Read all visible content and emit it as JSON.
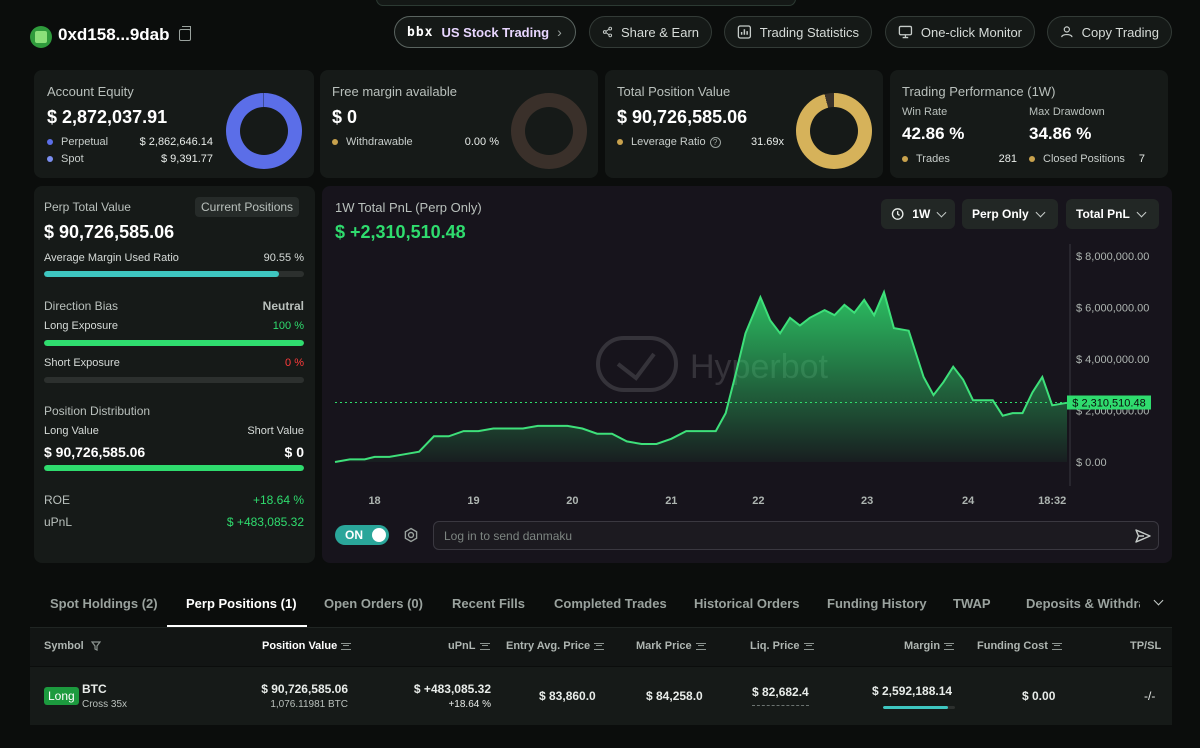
{
  "header": {
    "address": "0xd158...9dab",
    "buttons": {
      "stock_logo": "bbx",
      "stock": "US Stock Trading",
      "share": "Share & Earn",
      "stats": "Trading Statistics",
      "monitor": "One-click Monitor",
      "copy": "Copy Trading"
    }
  },
  "cards": {
    "equity": {
      "title": "Account Equity",
      "value": "$ 2,872,037.91",
      "rows": [
        {
          "label": "Perpetual",
          "value": "$ 2,862,646.14",
          "color": "#5b6ee8"
        },
        {
          "label": "Spot",
          "value": "$ 9,391.77",
          "color": "#7b8ef0"
        }
      ],
      "donut_fill_percent": 99.7,
      "donut_color": "#5b6ee8"
    },
    "free_margin": {
      "title": "Free margin available",
      "value": "$ 0",
      "row": {
        "label": "Withdrawable",
        "value": "0.00 %",
        "color": "#c8a24d"
      },
      "donut_fill_percent": 0,
      "donut_color": "#3a302a"
    },
    "position_value": {
      "title": "Total Position Value",
      "value": "$ 90,726,585.06",
      "row": {
        "label": "Leverage Ratio",
        "value": "31.69x",
        "color": "#c8a24d"
      },
      "donut_fill_percent": 96,
      "donut_color": "#d6b25a"
    },
    "performance": {
      "title": "Trading Performance (1W)",
      "win_rate_label": "Win Rate",
      "win_rate": "42.86 %",
      "drawdown_label": "Max Drawdown",
      "drawdown": "34.86 %",
      "trades_label": "Trades",
      "trades": "281",
      "closed_label": "Closed Positions",
      "closed": "7"
    }
  },
  "left_panel": {
    "perp_title": "Perp Total Value",
    "current_positions_btn": "Current Positions",
    "perp_value": "$ 90,726,585.06",
    "margin_label": "Average Margin Used Ratio",
    "margin_value": "90.55 %",
    "margin_fill": 90.55,
    "direction_label": "Direction Bias",
    "direction_value": "Neutral",
    "long_exp_label": "Long Exposure",
    "long_exp_value": "100 %",
    "long_exp_fill": 100,
    "short_exp_label": "Short Exposure",
    "short_exp_value": "0 %",
    "short_exp_fill": 0,
    "dist_label": "Position Distribution",
    "long_value_label": "Long Value",
    "short_value_label": "Short Value",
    "long_value": "$ 90,726,585.06",
    "short_value": "$ 0",
    "dist_fill": 100,
    "roe_label": "ROE",
    "roe_value": "+18.64 %",
    "upnl_label": "uPnL",
    "upnl_value": "$ +483,085.32"
  },
  "chart_panel": {
    "title": "1W Total PnL (Perp Only)",
    "value": "$ +2,310,510.48",
    "period": "1W",
    "scope": "Perp Only",
    "metric": "Total PnL",
    "watermark": "Hyperbot",
    "toggle": "ON",
    "danmaku_placeholder": "Log in to send danmaku",
    "current_label": "$ 2,310,510.48"
  },
  "chart_data": {
    "type": "area",
    "title": "1W Total PnL (Perp Only)",
    "x_ticks": [
      "18",
      "19",
      "20",
      "21",
      "22",
      "23",
      "24",
      "18:32"
    ],
    "y_ticks": [
      "$ 0.00",
      "$ 2,000,000.00",
      "$ 4,000,000.00",
      "$ 6,000,000.00",
      "$ 8,000,000.00"
    ],
    "ylim": [
      0,
      8000000
    ],
    "current_value": 2310510.48,
    "series": [
      {
        "values": [
          [
            17.6,
            0.0
          ],
          [
            17.75,
            0.1
          ],
          [
            17.9,
            0.1
          ],
          [
            18.0,
            0.2
          ],
          [
            18.15,
            0.2
          ],
          [
            18.3,
            0.3
          ],
          [
            18.45,
            0.4
          ],
          [
            18.6,
            1.0
          ],
          [
            18.75,
            1.0
          ],
          [
            18.9,
            1.2
          ],
          [
            19.05,
            1.2
          ],
          [
            19.2,
            1.3
          ],
          [
            19.35,
            1.3
          ],
          [
            19.5,
            1.3
          ],
          [
            19.65,
            1.4
          ],
          [
            19.8,
            1.4
          ],
          [
            19.95,
            1.4
          ],
          [
            20.1,
            1.3
          ],
          [
            20.25,
            1.1
          ],
          [
            20.4,
            1.1
          ],
          [
            20.55,
            0.8
          ],
          [
            20.7,
            0.7
          ],
          [
            20.85,
            0.7
          ],
          [
            21.0,
            0.9
          ],
          [
            21.15,
            1.2
          ],
          [
            21.3,
            1.2
          ],
          [
            21.45,
            1.2
          ],
          [
            21.55,
            1.9
          ],
          [
            21.65,
            3.4
          ],
          [
            21.75,
            5.0
          ],
          [
            21.9,
            6.4
          ],
          [
            22.0,
            5.5
          ],
          [
            22.1,
            5.0
          ],
          [
            22.2,
            5.6
          ],
          [
            22.3,
            5.3
          ],
          [
            22.4,
            5.6
          ],
          [
            22.55,
            5.9
          ],
          [
            22.65,
            5.7
          ],
          [
            22.75,
            6.1
          ],
          [
            22.85,
            5.8
          ],
          [
            22.95,
            6.3
          ],
          [
            23.05,
            5.7
          ],
          [
            23.15,
            6.6
          ],
          [
            23.25,
            5.2
          ],
          [
            23.4,
            5.1
          ],
          [
            23.55,
            3.3
          ],
          [
            23.65,
            2.6
          ],
          [
            23.75,
            3.1
          ],
          [
            23.85,
            3.7
          ],
          [
            23.95,
            3.2
          ],
          [
            24.05,
            2.4
          ],
          [
            24.25,
            2.4
          ],
          [
            24.35,
            1.8
          ],
          [
            24.45,
            1.9
          ],
          [
            24.55,
            1.9
          ],
          [
            24.65,
            2.7
          ],
          [
            24.75,
            3.3
          ],
          [
            24.85,
            2.2
          ],
          [
            25.0,
            2.3
          ]
        ]
      }
    ]
  },
  "tabs": [
    "Spot Holdings (2)",
    "Perp Positions (1)",
    "Open Orders (0)",
    "Recent Fills",
    "Completed Trades",
    "Historical Orders",
    "Funding History",
    "TWAP",
    "Deposits & Withdraw"
  ],
  "table": {
    "headers": {
      "symbol": "Symbol",
      "position_value": "Position Value",
      "upnl": "uPnL",
      "entry": "Entry Avg. Price",
      "mark": "Mark Price",
      "liq": "Liq. Price",
      "margin": "Margin",
      "funding": "Funding Cost",
      "tpsl": "TP/SL"
    },
    "row": {
      "side": "Long",
      "symbol": "BTC",
      "leverage": "Cross 35x",
      "position_value": "$ 90,726,585.06",
      "position_size": "1,076.11981 BTC",
      "upnl": "$ +483,085.32",
      "upnl_pct": "+18.64 %",
      "entry": "$ 83,860.0",
      "mark": "$ 84,258.0",
      "liq": "$ 82,682.4",
      "margin": "$ 2,592,188.14",
      "margin_ratio": 90.55,
      "funding": "$ 0.00",
      "tpsl": "-/-"
    }
  }
}
